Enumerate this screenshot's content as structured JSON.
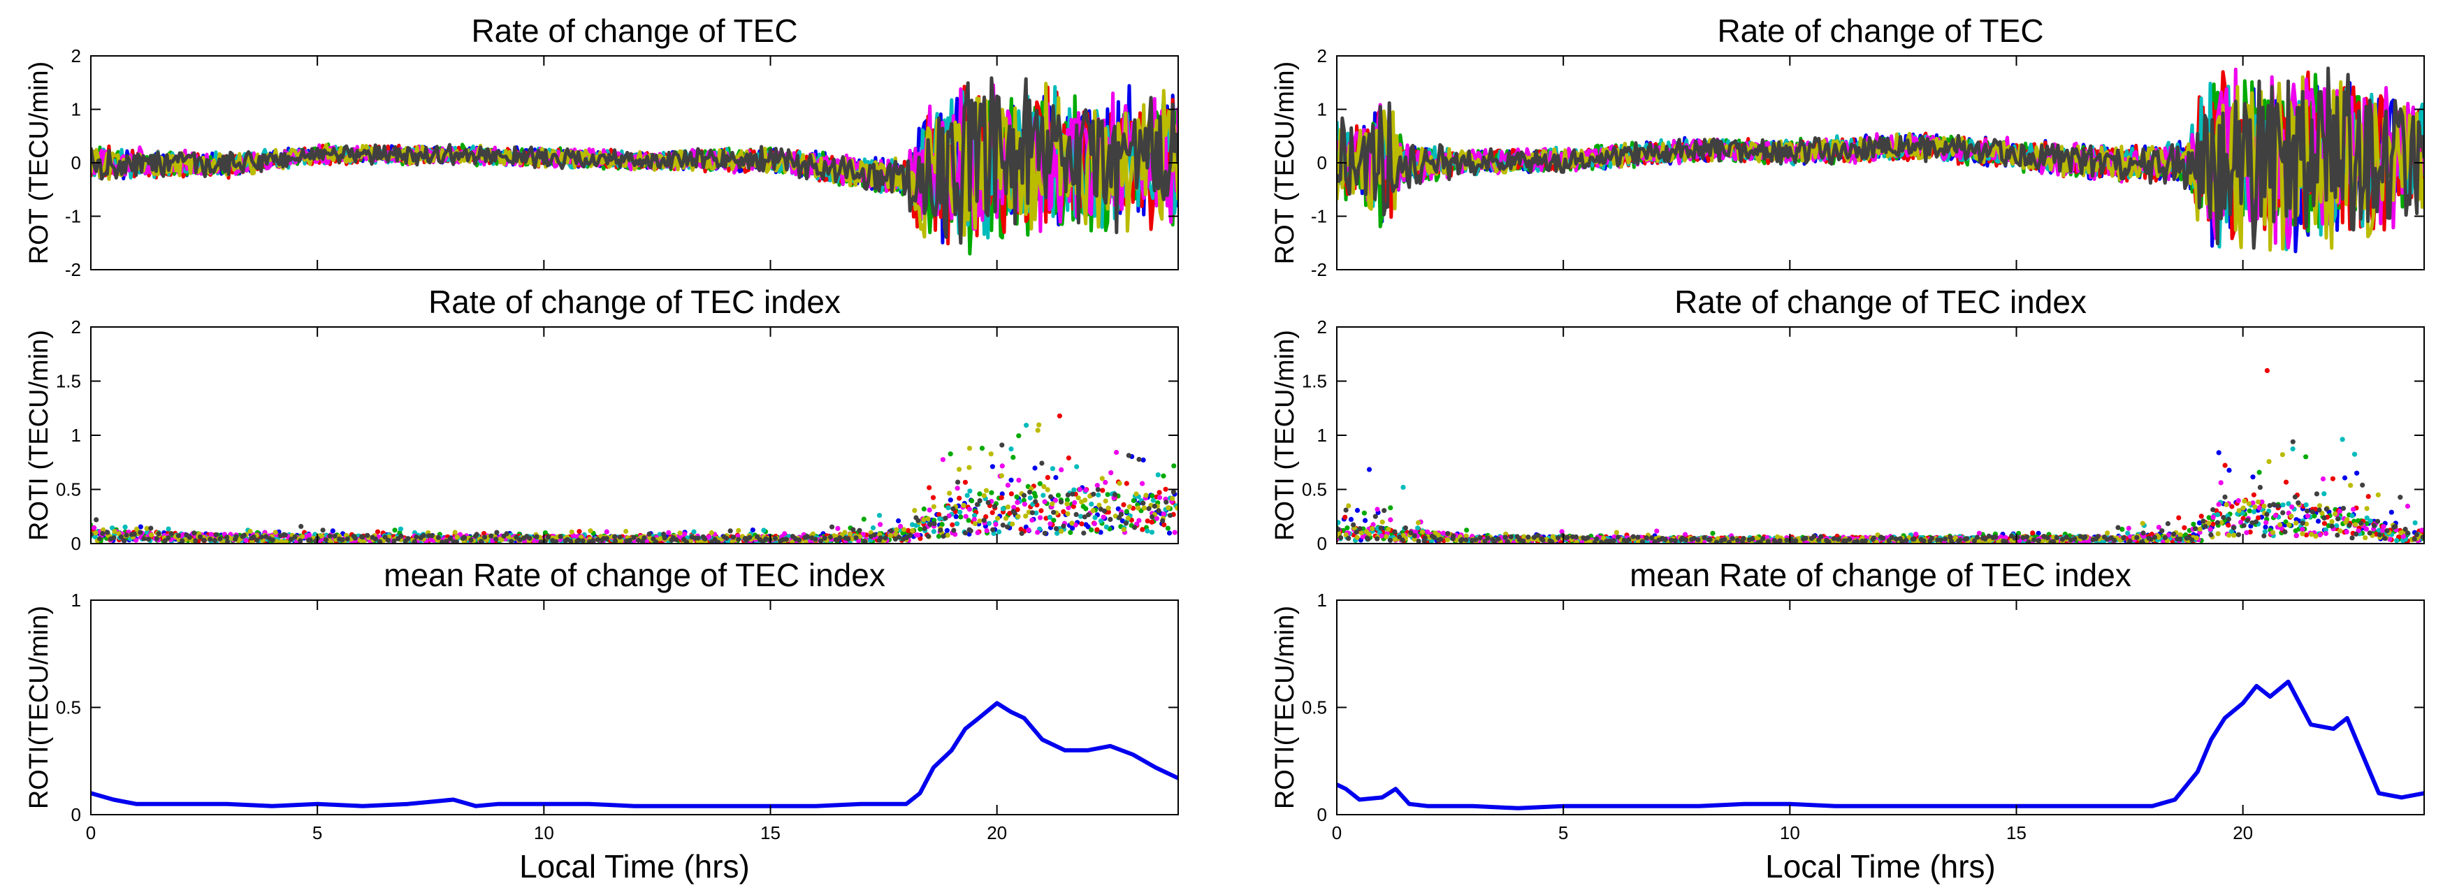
{
  "figure": {
    "xlabel": "Local Time (hrs)",
    "xlim": [
      0,
      24
    ],
    "xticks": [
      0,
      5,
      10,
      15,
      20
    ]
  },
  "colors": {
    "series_palette": [
      "#0000ee",
      "#00aa00",
      "#ee0000",
      "#00bbbb",
      "#ee00ee",
      "#bbbb00",
      "#404040"
    ],
    "mean_line": "#0000ee",
    "axes": "#000000"
  },
  "chart_data": [
    {
      "id": "rot-left",
      "type": "line",
      "title": "Rate of change of TEC",
      "ylabel": "ROT (TECU/min)",
      "xlabel": "",
      "xlim": [
        0,
        24
      ],
      "ylim": [
        -2,
        2
      ],
      "yticks": [
        -2,
        -1,
        0,
        1,
        2
      ],
      "profile": {
        "base": [
          [
            0,
            0.0
          ],
          [
            3,
            -0.05
          ],
          [
            5,
            0.15
          ],
          [
            8,
            0.15
          ],
          [
            12,
            0.05
          ],
          [
            15,
            0.05
          ],
          [
            17,
            -0.2
          ],
          [
            18,
            -0.3
          ],
          [
            20,
            0.0
          ],
          [
            24,
            0.1
          ]
        ],
        "spread": [
          [
            0,
            0.35
          ],
          [
            3,
            0.25
          ],
          [
            5,
            0.2
          ],
          [
            12,
            0.2
          ],
          [
            16,
            0.3
          ],
          [
            18,
            0.4
          ],
          [
            18.3,
            1.4
          ],
          [
            19.5,
            1.7
          ],
          [
            22,
            1.5
          ],
          [
            24,
            1.3
          ]
        ]
      }
    },
    {
      "id": "roti-left",
      "type": "scatter",
      "title": "Rate of change of TEC index",
      "ylabel": "ROTI (TECU/min)",
      "xlabel": "",
      "xlim": [
        0,
        24
      ],
      "ylim": [
        0,
        2
      ],
      "yticks": [
        0,
        0.5,
        1,
        1.5,
        2
      ],
      "profile": {
        "base": [
          [
            0,
            0.07
          ],
          [
            3,
            0.05
          ],
          [
            10,
            0.04
          ],
          [
            16,
            0.04
          ],
          [
            18,
            0.08
          ],
          [
            19.5,
            0.3
          ],
          [
            22,
            0.3
          ],
          [
            24,
            0.25
          ]
        ],
        "spread": [
          [
            0,
            0.15
          ],
          [
            3,
            0.1
          ],
          [
            10,
            0.08
          ],
          [
            16,
            0.1
          ],
          [
            18,
            0.4
          ],
          [
            19.5,
            0.9
          ],
          [
            21,
            1.1
          ],
          [
            24,
            0.7
          ]
        ]
      }
    },
    {
      "id": "mean-left",
      "type": "line",
      "title": "mean Rate of change of TEC index",
      "ylabel": "ROTI(TECU/min)",
      "xlabel": "Local Time (hrs)",
      "xlim": [
        0,
        24
      ],
      "ylim": [
        0,
        1
      ],
      "yticks": [
        0,
        0.5,
        1
      ],
      "x": [
        0,
        0.5,
        1,
        2,
        3,
        4,
        5,
        6,
        7,
        7.5,
        8,
        8.5,
        9,
        10,
        11,
        12,
        13,
        14,
        15,
        16,
        17,
        17.5,
        18,
        18.3,
        18.6,
        19,
        19.3,
        19.6,
        20,
        20.3,
        20.6,
        21,
        21.5,
        22,
        22.5,
        23,
        23.5,
        24
      ],
      "y": [
        0.1,
        0.07,
        0.05,
        0.05,
        0.05,
        0.04,
        0.05,
        0.04,
        0.05,
        0.06,
        0.07,
        0.04,
        0.05,
        0.05,
        0.05,
        0.04,
        0.04,
        0.04,
        0.04,
        0.04,
        0.05,
        0.05,
        0.05,
        0.1,
        0.22,
        0.3,
        0.4,
        0.45,
        0.52,
        0.48,
        0.45,
        0.35,
        0.3,
        0.3,
        0.32,
        0.28,
        0.22,
        0.17
      ]
    },
    {
      "id": "rot-right",
      "type": "line",
      "title": "Rate of change of TEC",
      "ylabel": "ROT (TECU/min)",
      "xlabel": "",
      "xlim": [
        0,
        24
      ],
      "ylim": [
        -2,
        2
      ],
      "yticks": [
        -2,
        -1,
        0,
        1,
        2
      ],
      "profile": {
        "base": [
          [
            0,
            0.05
          ],
          [
            2,
            0.0
          ],
          [
            5,
            0.05
          ],
          [
            8,
            0.25
          ],
          [
            10,
            0.2
          ],
          [
            13,
            0.3
          ],
          [
            15,
            0.15
          ],
          [
            17,
            0.0
          ],
          [
            19,
            0.0
          ],
          [
            24,
            0.1
          ]
        ],
        "spread": [
          [
            0,
            1.0
          ],
          [
            0.5,
            0.7
          ],
          [
            1,
            1.6
          ],
          [
            1.5,
            0.5
          ],
          [
            3,
            0.25
          ],
          [
            8,
            0.25
          ],
          [
            14,
            0.3
          ],
          [
            18,
            0.4
          ],
          [
            18.8,
            0.5
          ],
          [
            19.2,
            1.8
          ],
          [
            22,
            1.8
          ],
          [
            23,
            1.5
          ],
          [
            24,
            1.2
          ]
        ]
      }
    },
    {
      "id": "roti-right",
      "type": "scatter",
      "title": "Rate of change of TEC index",
      "ylabel": "ROTI (TECU/min)",
      "xlabel": "",
      "xlim": [
        0,
        24
      ],
      "ylim": [
        0,
        2
      ],
      "yticks": [
        0,
        0.5,
        1,
        1.5,
        2
      ],
      "profile": {
        "base": [
          [
            0,
            0.1
          ],
          [
            1.5,
            0.08
          ],
          [
            3,
            0.04
          ],
          [
            10,
            0.03
          ],
          [
            17,
            0.04
          ],
          [
            19,
            0.05
          ],
          [
            19.5,
            0.25
          ],
          [
            22,
            0.2
          ],
          [
            24,
            0.05
          ]
        ],
        "spread": [
          [
            0,
            0.5
          ],
          [
            1,
            0.6
          ],
          [
            1.5,
            0.8
          ],
          [
            2,
            0.1
          ],
          [
            10,
            0.05
          ],
          [
            17,
            0.08
          ],
          [
            19,
            0.3
          ],
          [
            19.5,
            1.2
          ],
          [
            21,
            1.6
          ],
          [
            23,
            0.8
          ],
          [
            24,
            0.3
          ]
        ]
      }
    },
    {
      "id": "mean-right",
      "type": "line",
      "title": "mean Rate of change of TEC index",
      "ylabel": "ROTI(TECU/min)",
      "xlabel": "Local Time (hrs)",
      "xlim": [
        0,
        24
      ],
      "ylim": [
        0,
        1
      ],
      "yticks": [
        0,
        0.5,
        1
      ],
      "x": [
        0,
        0.2,
        0.5,
        1,
        1.3,
        1.6,
        2,
        3,
        4,
        5,
        6,
        7,
        8,
        9,
        10,
        11,
        12,
        13,
        14,
        15,
        16,
        17,
        18,
        18.5,
        19,
        19.3,
        19.6,
        20,
        20.3,
        20.6,
        21,
        21.5,
        22,
        22.3,
        22.6,
        23,
        23.5,
        24
      ],
      "y": [
        0.14,
        0.12,
        0.07,
        0.08,
        0.12,
        0.05,
        0.04,
        0.04,
        0.03,
        0.04,
        0.04,
        0.04,
        0.04,
        0.05,
        0.05,
        0.04,
        0.04,
        0.04,
        0.04,
        0.04,
        0.04,
        0.04,
        0.04,
        0.07,
        0.2,
        0.35,
        0.45,
        0.52,
        0.6,
        0.55,
        0.62,
        0.42,
        0.4,
        0.45,
        0.3,
        0.1,
        0.08,
        0.1
      ]
    }
  ]
}
